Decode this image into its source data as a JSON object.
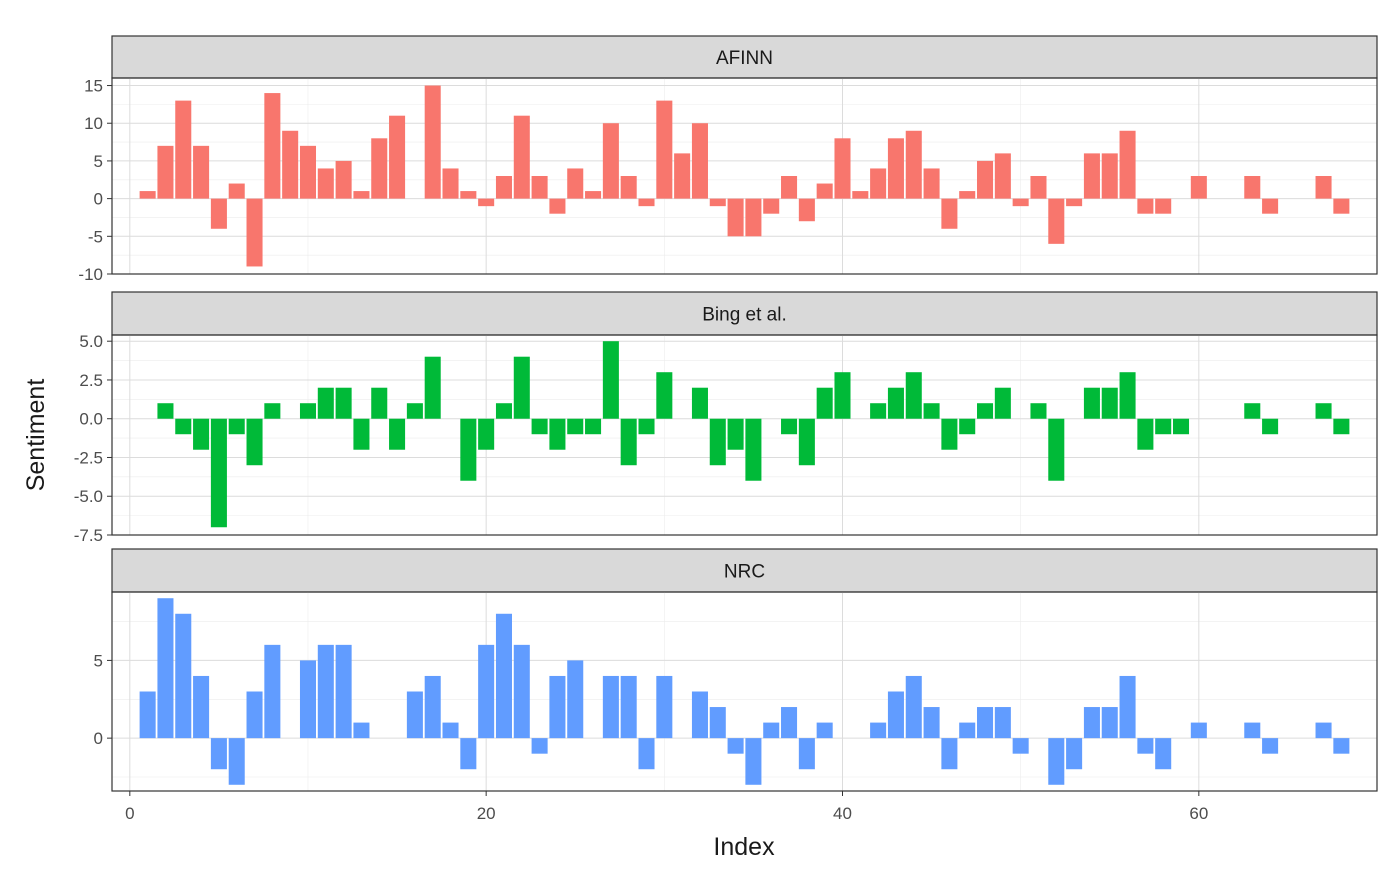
{
  "chart_data": {
    "type": "bar",
    "xlabel": "Index",
    "ylabel": "Sentiment",
    "xlim": [
      -1,
      70
    ],
    "x_ticks": [
      0,
      20,
      40,
      60
    ],
    "facets": [
      {
        "label": "AFINN",
        "color": "#F8766D",
        "ylim": [
          -10,
          16
        ],
        "y_ticks": [
          15,
          10,
          5,
          0,
          -5,
          -10
        ],
        "y_tick_labels": [
          "15",
          "10",
          "5",
          "0",
          "-5",
          "-10"
        ],
        "x": [
          1,
          2,
          3,
          4,
          5,
          6,
          7,
          8,
          9,
          10,
          11,
          12,
          13,
          14,
          15,
          17,
          18,
          19,
          20,
          21,
          22,
          23,
          24,
          25,
          26,
          27,
          28,
          29,
          30,
          31,
          32,
          33,
          34,
          35,
          36,
          37,
          38,
          39,
          40,
          41,
          42,
          43,
          44,
          45,
          46,
          47,
          48,
          49,
          50,
          51,
          52,
          53,
          54,
          55,
          56,
          57,
          58,
          60,
          63,
          64,
          67,
          68
        ],
        "values": [
          1,
          7,
          13,
          7,
          -4,
          2,
          -9,
          14,
          9,
          7,
          4,
          5,
          1,
          8,
          11,
          15,
          4,
          1,
          -1,
          3,
          11,
          3,
          -2,
          4,
          1,
          10,
          3,
          -1,
          13,
          6,
          10,
          -1,
          -5,
          -5,
          -2,
          3,
          -3,
          2,
          8,
          1,
          4,
          8,
          9,
          4,
          -4,
          1,
          5,
          6,
          -1,
          3,
          -6,
          -1,
          6,
          6,
          9,
          -2,
          -2,
          3,
          3,
          -2,
          3,
          -2
        ]
      },
      {
        "label": "Bing et al.",
        "color": "#00BA38",
        "ylim": [
          -7.5,
          5.4
        ],
        "y_ticks": [
          5,
          2.5,
          0,
          -2.5,
          -5,
          -7.5
        ],
        "y_tick_labels": [
          "5.0",
          "2.5",
          "0.0",
          "-2.5",
          "-5.0",
          "-7.5"
        ],
        "x": [
          2,
          3,
          4,
          5,
          6,
          7,
          8,
          10,
          11,
          12,
          13,
          14,
          15,
          16,
          17,
          19,
          20,
          21,
          22,
          23,
          24,
          25,
          26,
          27,
          28,
          29,
          30,
          32,
          33,
          34,
          35,
          37,
          38,
          39,
          40,
          42,
          43,
          44,
          45,
          46,
          47,
          48,
          49,
          51,
          52,
          54,
          55,
          56,
          57,
          58,
          59,
          63,
          64,
          67,
          68
        ],
        "values": [
          1,
          -1,
          -2,
          -7,
          -1,
          -3,
          1,
          1,
          2,
          2,
          -2,
          2,
          -2,
          1,
          4,
          -4,
          -2,
          1,
          4,
          -1,
          -2,
          -1,
          -1,
          5,
          -3,
          -1,
          3,
          2,
          -3,
          -2,
          -4,
          -1,
          -3,
          2,
          3,
          1,
          2,
          3,
          1,
          -2,
          -1,
          1,
          2,
          1,
          -4,
          2,
          2,
          3,
          -2,
          -1,
          -1,
          1,
          -1,
          1,
          -1
        ]
      },
      {
        "label": "NRC",
        "color": "#619CFF",
        "ylim": [
          -3.4,
          9.4
        ],
        "y_ticks": [
          5,
          0
        ],
        "y_tick_labels": [
          "5",
          "0"
        ],
        "x": [
          1,
          2,
          3,
          4,
          5,
          6,
          7,
          8,
          10,
          11,
          12,
          13,
          16,
          17,
          18,
          19,
          20,
          21,
          22,
          23,
          24,
          25,
          27,
          28,
          29,
          30,
          32,
          33,
          34,
          35,
          36,
          37,
          38,
          39,
          42,
          43,
          44,
          45,
          46,
          47,
          48,
          49,
          50,
          52,
          53,
          54,
          55,
          56,
          57,
          58,
          60,
          63,
          64,
          67,
          68
        ],
        "values": [
          3,
          9,
          8,
          4,
          -2,
          -3,
          3,
          6,
          5,
          6,
          6,
          1,
          3,
          4,
          1,
          -2,
          6,
          8,
          6,
          -1,
          4,
          5,
          4,
          4,
          -2,
          4,
          3,
          2,
          -1,
          -3,
          1,
          2,
          -2,
          1,
          1,
          3,
          4,
          2,
          -2,
          1,
          2,
          2,
          -1,
          -3,
          -2,
          2,
          2,
          4,
          -1,
          -2,
          1,
          1,
          -1,
          1,
          -1
        ]
      }
    ]
  }
}
